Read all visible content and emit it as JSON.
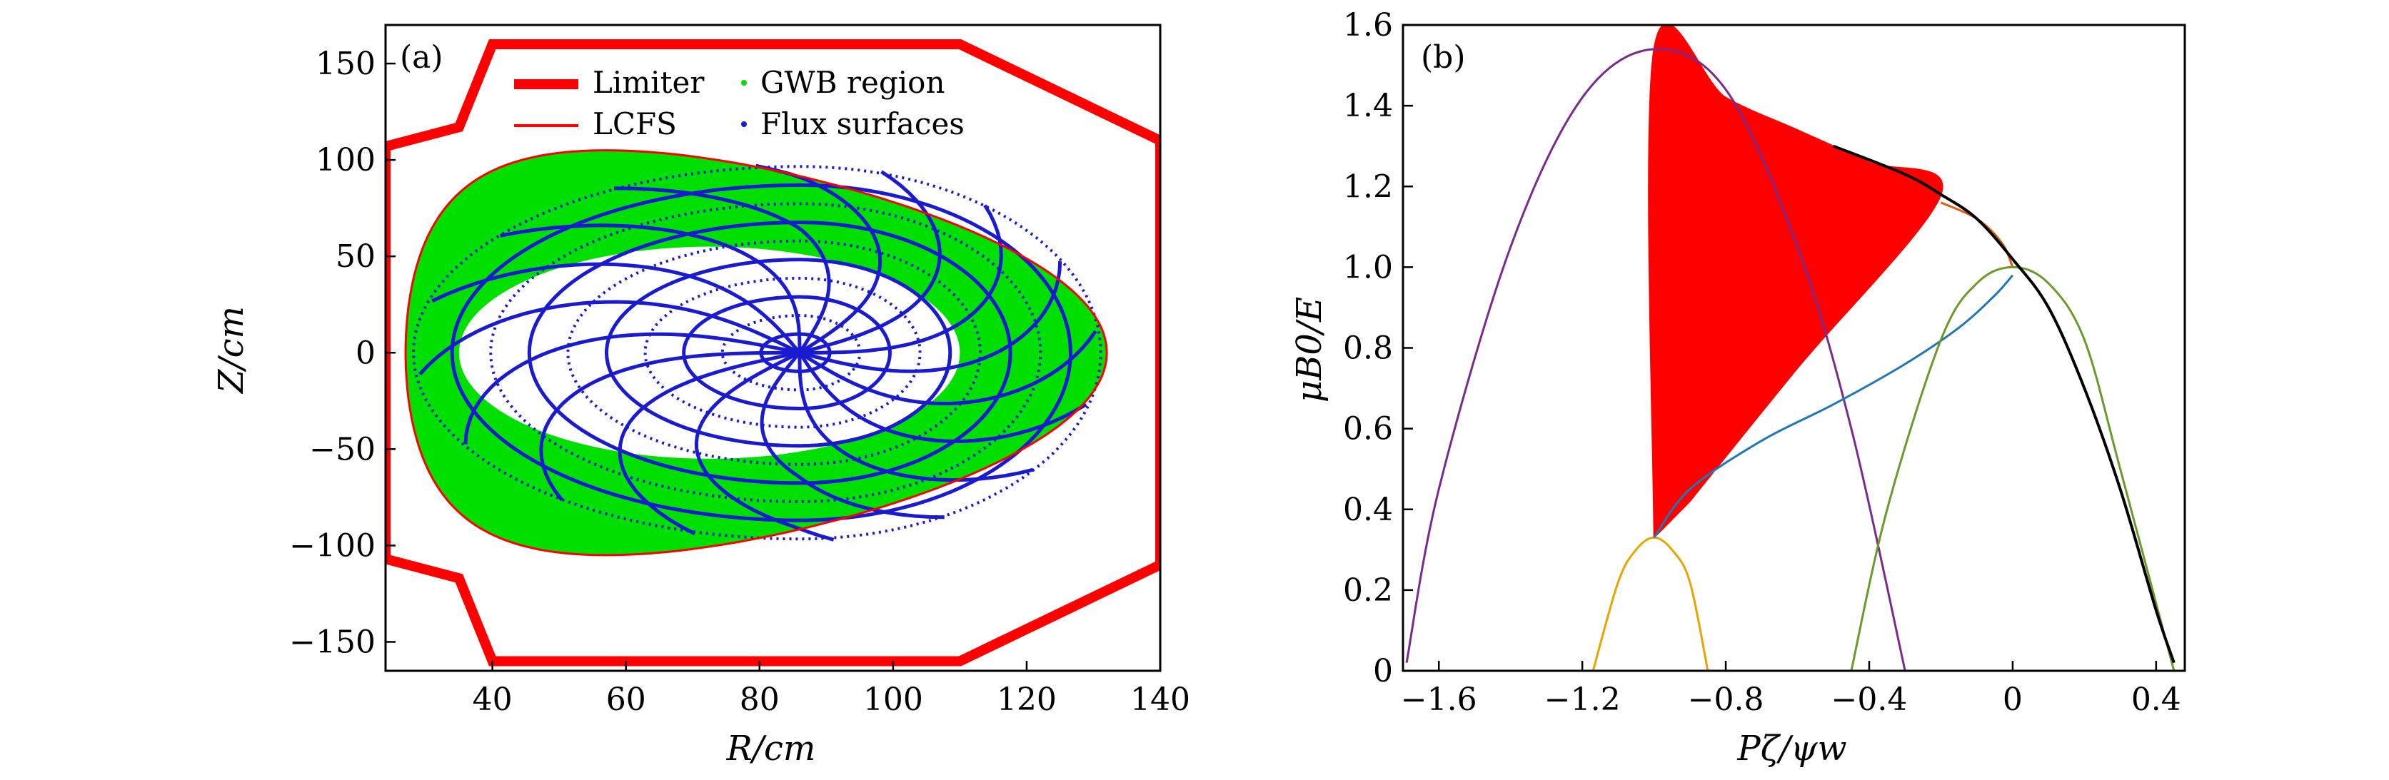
{
  "chart_data": [
    {
      "panel": "(a)",
      "type": "scatter",
      "xlabel": "R/cm",
      "ylabel": "Z/cm",
      "xlim": [
        24,
        140
      ],
      "ylim": [
        -165,
        170
      ],
      "xticks": [
        40,
        60,
        80,
        100,
        120,
        140
      ],
      "yticks": [
        150,
        100,
        50,
        0,
        -50,
        -100,
        -150
      ],
      "legend": {
        "placement": "top",
        "entries": [
          "Limiter",
          "LCFS",
          "GWB region",
          "Flux surfaces"
        ]
      },
      "colors": {
        "limiter": "#ff0000",
        "lcfs": "#ff0000",
        "gwb": "#00e000",
        "flux": "#1a1ad0"
      },
      "limiter": {
        "R": [
          24,
          35,
          40,
          110,
          140,
          140,
          110,
          40,
          35,
          24,
          24
        ],
        "Z": [
          107,
          117,
          160,
          160,
          110,
          -110,
          -160,
          -160,
          -117,
          -107,
          107
        ]
      },
      "lcfs": {
        "R_axis": 57,
        "R_inner": 27,
        "R_outer": 132,
        "Z_top": 105,
        "Z_bottom": -105,
        "shape": "D-shaped"
      },
      "gwb_region": {
        "description": "region between LCFS and inner boundary",
        "inner_R": [
          35,
          110
        ],
        "inner_Z": [
          -55,
          55
        ]
      },
      "flux_surfaces": {
        "center_R": 86,
        "center_Z": 0,
        "count": 10
      }
    },
    {
      "panel": "(b)",
      "type": "line",
      "xlabel": "Pζ/ψw",
      "ylabel": "μB0/E",
      "xlim": [
        -1.7,
        0.48
      ],
      "ylim": [
        0,
        1.6
      ],
      "xticks": [
        -1.6,
        -1.2,
        -0.8,
        -0.4,
        0,
        0.4
      ],
      "yticks": [
        0,
        0.2,
        0.4,
        0.6,
        0.8,
        1.0,
        1.2,
        1.4,
        1.6
      ],
      "xtick_labels": [
        "−1.6",
        "−1.2",
        "−0.8",
        "−0.4",
        "0",
        "0.4"
      ],
      "ytick_labels": [
        "0",
        "0.2",
        "0.4",
        "0.6",
        "0.8",
        "1.0",
        "1.2",
        "1.4",
        "1.6"
      ],
      "series": [
        {
          "color": "#7a2a8c",
          "x": [
            -1.69,
            -1.6,
            -1.4,
            -1.2,
            -1.0,
            -0.8,
            -0.6,
            -0.45,
            -0.3
          ],
          "y": [
            0.02,
            0.45,
            1.05,
            1.42,
            1.54,
            1.44,
            1.05,
            0.6,
            0.0
          ]
        },
        {
          "color": "#e8a500",
          "x": [
            -1.17,
            -1.1,
            -1.05,
            -1.0,
            -0.95,
            -0.9,
            -0.85
          ],
          "y": [
            0.0,
            0.22,
            0.3,
            0.33,
            0.3,
            0.22,
            0.0
          ]
        },
        {
          "color": "#1f77b4",
          "x": [
            -1.0,
            -0.9,
            -0.7,
            -0.5,
            -0.3,
            -0.15,
            -0.05,
            0.0
          ],
          "y": [
            0.33,
            0.45,
            0.57,
            0.66,
            0.76,
            0.85,
            0.93,
            0.98
          ]
        },
        {
          "color": "#6a9a2a",
          "x": [
            -0.45,
            -0.35,
            -0.2,
            -0.1,
            0.0,
            0.1,
            0.2,
            0.3,
            0.45
          ],
          "y": [
            0.0,
            0.4,
            0.82,
            0.96,
            1.0,
            0.96,
            0.82,
            0.5,
            0.0
          ]
        },
        {
          "color": "#e05a10",
          "x": [
            -0.2,
            -0.1,
            -0.03,
            0.0
          ],
          "y": [
            1.16,
            1.12,
            1.06,
            1.0
          ]
        },
        {
          "color": "#000000",
          "x": [
            -0.5,
            -0.3,
            -0.2,
            -0.1,
            0.0,
            0.1,
            0.2,
            0.3,
            0.4,
            0.45
          ],
          "y": [
            1.3,
            1.23,
            1.18,
            1.12,
            1.02,
            0.9,
            0.7,
            0.45,
            0.15,
            0.02
          ]
        }
      ],
      "filled_region": {
        "color": "#ff0000",
        "x": [
          -1.0,
          -1.0,
          -0.8,
          -0.6,
          -0.4,
          -0.2,
          -0.6,
          -0.9
        ],
        "y": [
          0.33,
          1.54,
          1.42,
          1.34,
          1.26,
          1.18,
          0.75,
          0.42
        ]
      }
    }
  ]
}
